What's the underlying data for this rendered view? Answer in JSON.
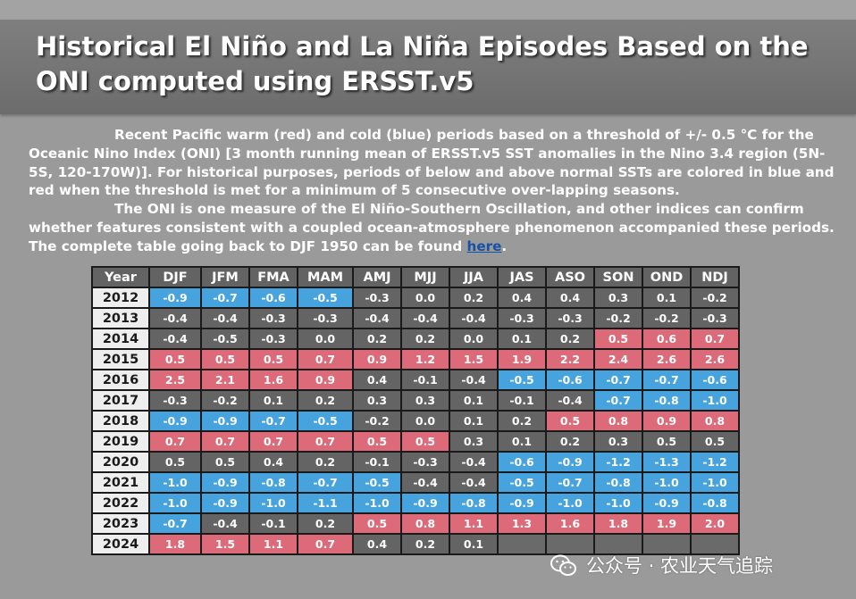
{
  "page": {
    "title": "Historical El Niño and La Niña Episodes Based on the ONI computed using ERSST.v5"
  },
  "intro": {
    "p1": "Recent Pacific warm (red) and cold (blue) periods based on a threshold of +/- 0.5 °C for the Oceanic Nino Index (ONI) [3 month running mean of ERSST.v5 SST anomalies in the Nino 3.4 region (5N-5S, 120-170W)]. For historical purposes, periods of below and above normal SSTs are colored in blue and red when the threshold is met for a minimum of 5 consecutive over-lapping seasons.",
    "p2_before_link": "The ONI is one measure of the El Niño-Southern Oscillation, and other indices can confirm whether features consistent with a coupled ocean-atmosphere phenomenon accompanied these periods. The complete table going back to DJF 1950 can be found ",
    "link_text": "here",
    "p2_after_link": "."
  },
  "colors": {
    "warm": "#dc6a78",
    "cold": "#47a3dd",
    "neutral": "#646464",
    "year_cell": "#eeeeee",
    "header_bar": "#747474"
  },
  "table": {
    "columns": [
      "Year",
      "DJF",
      "JFM",
      "FMA",
      "MAM",
      "AMJ",
      "MJJ",
      "JJA",
      "JAS",
      "ASO",
      "SON",
      "OND",
      "NDJ"
    ],
    "rows": [
      {
        "year": "2012",
        "values": [
          "-0.9",
          "-0.7",
          "-0.6",
          "-0.5",
          "-0.3",
          "0.0",
          "0.2",
          "0.4",
          "0.4",
          "0.3",
          "0.1",
          "-0.2"
        ],
        "status": [
          "c",
          "c",
          "c",
          "c",
          "n",
          "n",
          "n",
          "n",
          "n",
          "n",
          "n",
          "n"
        ]
      },
      {
        "year": "2013",
        "values": [
          "-0.4",
          "-0.4",
          "-0.3",
          "-0.3",
          "-0.4",
          "-0.4",
          "-0.4",
          "-0.3",
          "-0.3",
          "-0.2",
          "-0.2",
          "-0.3"
        ],
        "status": [
          "n",
          "n",
          "n",
          "n",
          "n",
          "n",
          "n",
          "n",
          "n",
          "n",
          "n",
          "n"
        ]
      },
      {
        "year": "2014",
        "values": [
          "-0.4",
          "-0.5",
          "-0.3",
          "0.0",
          "0.2",
          "0.2",
          "0.0",
          "0.1",
          "0.2",
          "0.5",
          "0.6",
          "0.7"
        ],
        "status": [
          "n",
          "n",
          "n",
          "n",
          "n",
          "n",
          "n",
          "n",
          "n",
          "w",
          "w",
          "w"
        ]
      },
      {
        "year": "2015",
        "values": [
          "0.5",
          "0.5",
          "0.5",
          "0.7",
          "0.9",
          "1.2",
          "1.5",
          "1.9",
          "2.2",
          "2.4",
          "2.6",
          "2.6"
        ],
        "status": [
          "w",
          "w",
          "w",
          "w",
          "w",
          "w",
          "w",
          "w",
          "w",
          "w",
          "w",
          "w"
        ]
      },
      {
        "year": "2016",
        "values": [
          "2.5",
          "2.1",
          "1.6",
          "0.9",
          "0.4",
          "-0.1",
          "-0.4",
          "-0.5",
          "-0.6",
          "-0.7",
          "-0.7",
          "-0.6"
        ],
        "status": [
          "w",
          "w",
          "w",
          "w",
          "n",
          "n",
          "n",
          "c",
          "c",
          "c",
          "c",
          "c"
        ]
      },
      {
        "year": "2017",
        "values": [
          "-0.3",
          "-0.2",
          "0.1",
          "0.2",
          "0.3",
          "0.3",
          "0.1",
          "-0.1",
          "-0.4",
          "-0.7",
          "-0.8",
          "-1.0"
        ],
        "status": [
          "n",
          "n",
          "n",
          "n",
          "n",
          "n",
          "n",
          "n",
          "n",
          "c",
          "c",
          "c"
        ]
      },
      {
        "year": "2018",
        "values": [
          "-0.9",
          "-0.9",
          "-0.7",
          "-0.5",
          "-0.2",
          "0.0",
          "0.1",
          "0.2",
          "0.5",
          "0.8",
          "0.9",
          "0.8"
        ],
        "status": [
          "c",
          "c",
          "c",
          "c",
          "n",
          "n",
          "n",
          "n",
          "w",
          "w",
          "w",
          "w"
        ]
      },
      {
        "year": "2019",
        "values": [
          "0.7",
          "0.7",
          "0.7",
          "0.7",
          "0.5",
          "0.5",
          "0.3",
          "0.1",
          "0.2",
          "0.3",
          "0.5",
          "0.5"
        ],
        "status": [
          "w",
          "w",
          "w",
          "w",
          "w",
          "w",
          "n",
          "n",
          "n",
          "n",
          "n",
          "n"
        ]
      },
      {
        "year": "2020",
        "values": [
          "0.5",
          "0.5",
          "0.4",
          "0.2",
          "-0.1",
          "-0.3",
          "-0.4",
          "-0.6",
          "-0.9",
          "-1.2",
          "-1.3",
          "-1.2"
        ],
        "status": [
          "n",
          "n",
          "n",
          "n",
          "n",
          "n",
          "n",
          "c",
          "c",
          "c",
          "c",
          "c"
        ]
      },
      {
        "year": "2021",
        "values": [
          "-1.0",
          "-0.9",
          "-0.8",
          "-0.7",
          "-0.5",
          "-0.4",
          "-0.4",
          "-0.5",
          "-0.7",
          "-0.8",
          "-1.0",
          "-1.0"
        ],
        "status": [
          "c",
          "c",
          "c",
          "c",
          "c",
          "n",
          "n",
          "c",
          "c",
          "c",
          "c",
          "c"
        ]
      },
      {
        "year": "2022",
        "values": [
          "-1.0",
          "-0.9",
          "-1.0",
          "-1.1",
          "-1.0",
          "-0.9",
          "-0.8",
          "-0.9",
          "-1.0",
          "-1.0",
          "-0.9",
          "-0.8"
        ],
        "status": [
          "c",
          "c",
          "c",
          "c",
          "c",
          "c",
          "c",
          "c",
          "c",
          "c",
          "c",
          "c"
        ]
      },
      {
        "year": "2023",
        "values": [
          "-0.7",
          "-0.4",
          "-0.1",
          "0.2",
          "0.5",
          "0.8",
          "1.1",
          "1.3",
          "1.6",
          "1.8",
          "1.9",
          "2.0"
        ],
        "status": [
          "c",
          "n",
          "n",
          "n",
          "w",
          "w",
          "w",
          "w",
          "w",
          "w",
          "w",
          "w"
        ]
      },
      {
        "year": "2024",
        "values": [
          "1.8",
          "1.5",
          "1.1",
          "0.7",
          "0.4",
          "0.2",
          "0.1",
          "",
          "",
          "",
          "",
          ""
        ],
        "status": [
          "w",
          "w",
          "w",
          "w",
          "n",
          "n",
          "n",
          "b",
          "b",
          "b",
          "b",
          "b"
        ]
      }
    ]
  },
  "watermark": {
    "icon": "wechat-icon",
    "text": "公众号 · 农业天气追踪"
  }
}
